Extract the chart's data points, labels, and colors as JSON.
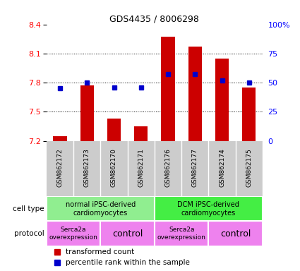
{
  "title": "GDS4435 / 8006298",
  "samples": [
    "GSM862172",
    "GSM862173",
    "GSM862170",
    "GSM862171",
    "GSM862176",
    "GSM862177",
    "GSM862174",
    "GSM862175"
  ],
  "transformed_count": [
    7.25,
    7.77,
    7.43,
    7.35,
    8.27,
    8.17,
    8.05,
    7.75
  ],
  "percentile_rank": [
    45,
    50,
    46,
    46,
    57,
    57,
    52,
    50
  ],
  "ylim_left": [
    7.2,
    8.4
  ],
  "ylim_right": [
    0,
    100
  ],
  "yticks_left": [
    7.2,
    7.5,
    7.8,
    8.1,
    8.4
  ],
  "yticks_right": [
    0,
    25,
    50,
    75,
    100
  ],
  "ytick_labels_right": [
    "0",
    "25",
    "50",
    "75",
    "100%"
  ],
  "bar_color": "#cc0000",
  "square_color": "#0000cc",
  "background_xticklabels": "#cccccc",
  "cell_type_groups": [
    {
      "label": "normal iPSC-derived\ncardiomyocytes",
      "start": 0,
      "end": 4,
      "color": "#90ee90"
    },
    {
      "label": "DCM iPSC-derived\ncardiomyocytes",
      "start": 4,
      "end": 8,
      "color": "#44ee44"
    }
  ],
  "protocol_groups": [
    {
      "label": "Serca2a\noverexpression",
      "start": 0,
      "end": 2,
      "color": "#ee82ee"
    },
    {
      "label": "control",
      "start": 2,
      "end": 4,
      "color": "#ee82ee"
    },
    {
      "label": "Serca2a\noverexpression",
      "start": 4,
      "end": 6,
      "color": "#ee82ee"
    },
    {
      "label": "control",
      "start": 6,
      "end": 8,
      "color": "#ee82ee"
    }
  ],
  "protocol_font_sizes": [
    6.5,
    9,
    6.5,
    9
  ],
  "legend_red_label": "transformed count",
  "legend_blue_label": "percentile rank within the sample",
  "cell_type_label": "cell type",
  "protocol_label": "protocol"
}
